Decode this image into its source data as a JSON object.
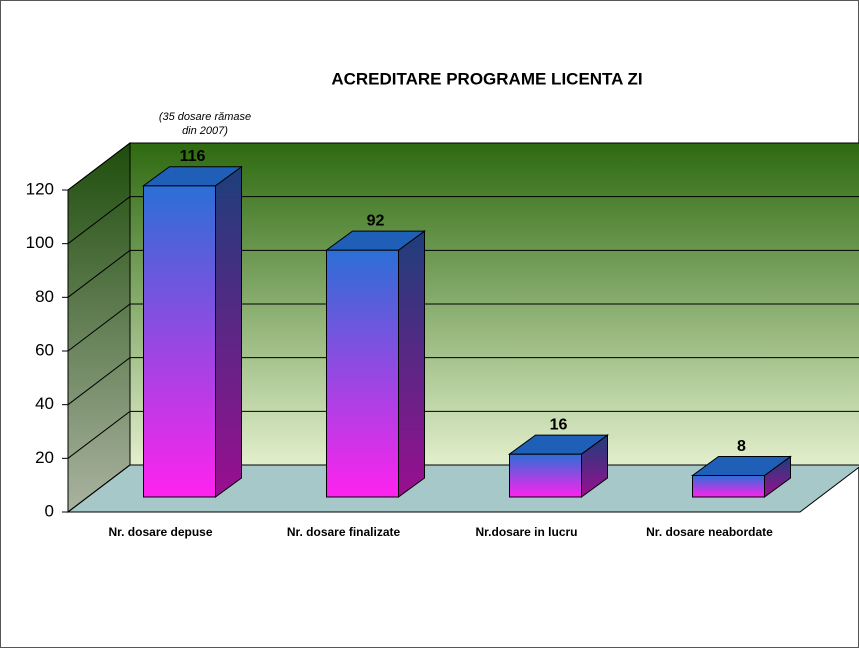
{
  "chart_data": {
    "type": "bar3d",
    "title": "ACREDITARE PROGRAME LICENTA ZI",
    "annotation": [
      "(35 dosare rămase",
      "din 2007)"
    ],
    "categories": [
      "Nr. dosare depuse",
      "Nr. dosare finalizate",
      "Nr.dosare in lucru",
      "Nr. dosare neabordate"
    ],
    "values": [
      116,
      92,
      16,
      8
    ],
    "ylim": [
      0,
      120
    ],
    "yticks": [
      0,
      20,
      40,
      60,
      80,
      100,
      120
    ],
    "grid": true,
    "colors": {
      "bar_top": "#2b6fd6",
      "bar_bottom": "#ff22ee",
      "wall_top": "#2e6a10",
      "wall_bottom": "#e2efcc",
      "floor": "#a7c8c8"
    }
  }
}
